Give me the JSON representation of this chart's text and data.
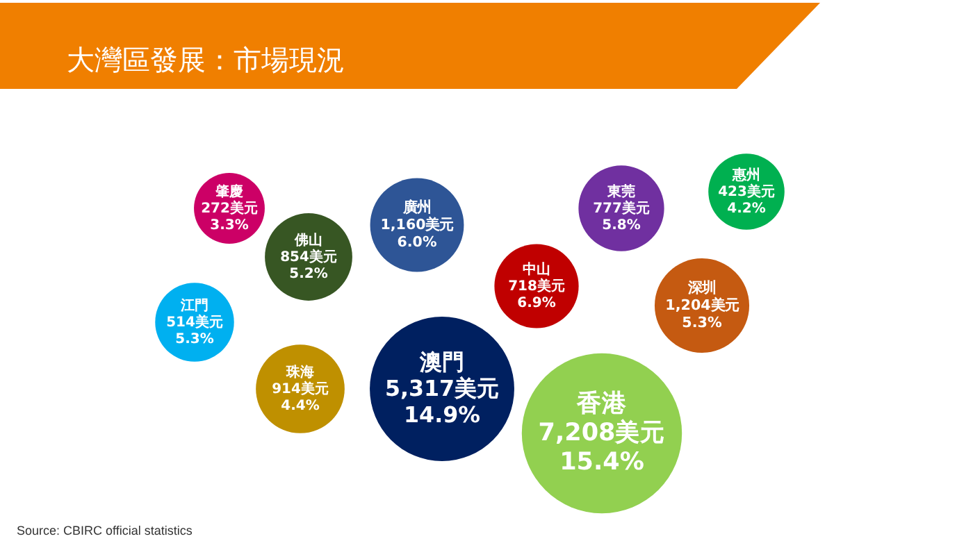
{
  "chart_data": {
    "type": "other",
    "title": "大灣區發展：市場現況",
    "categories": [
      "肇慶",
      "廣州",
      "東莞",
      "惠州",
      "佛山",
      "中山",
      "江門",
      "深圳",
      "珠海",
      "澳門",
      "香港"
    ],
    "series": [
      {
        "values": [
          272,
          1160,
          777,
          423,
          854,
          718,
          514,
          1204,
          914,
          5317,
          7208
        ],
        "colors": [
          "#cc0066",
          "#2e5596",
          "#7030a0",
          "#00b050",
          "#375623",
          "#c00000",
          "#00b0f0",
          "#c55a11",
          "#bf9000",
          "#002060",
          "#92d050"
        ],
        "value_labels": [
          "272美元",
          "1,160美元",
          "777美元",
          "423美元",
          "854美元",
          "718美元",
          "514美元",
          "1,204美元",
          "914美元",
          "5,317美元",
          "7,208美元"
        ]
      },
      {
        "values": [
          3.3,
          6.0,
          5.8,
          4.2,
          5.2,
          6.9,
          5.3,
          5.3,
          4.4,
          14.9,
          15.4
        ],
        "value_labels": [
          "3.3%",
          "6.0%",
          "5.8%",
          "4.2%",
          "5.2%",
          "6.9%",
          "5.3%",
          "5.3%",
          "4.4%",
          "14.9%",
          "15.4%"
        ]
      }
    ],
    "annotations": [
      "Source: CBIRC official statistics"
    ]
  }
}
